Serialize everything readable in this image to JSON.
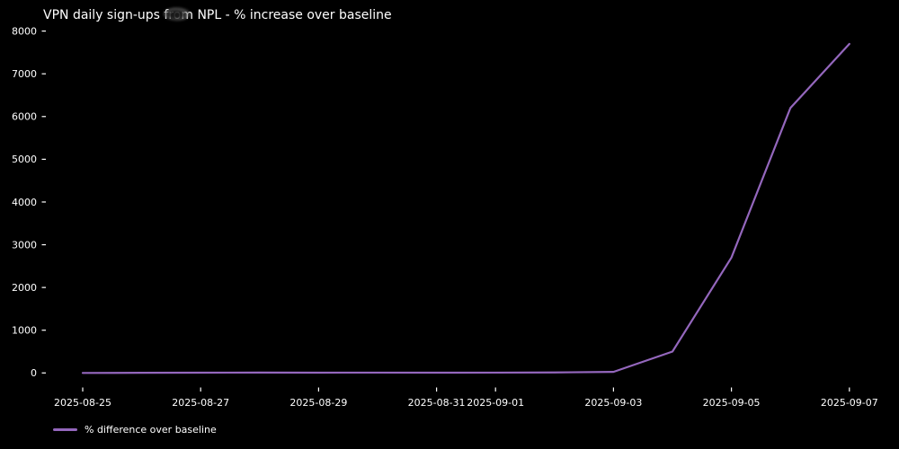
{
  "title": "VPN daily sign-ups from NPL - % increase over baseline",
  "legend": {
    "label": "% difference over baseline"
  },
  "colors": {
    "background": "#000000",
    "text": "#ffffff",
    "line": "#9467bd"
  },
  "chart_data": {
    "type": "line",
    "title": "VPN daily sign-ups from NPL - % increase over baseline",
    "x": [
      "2025-08-25",
      "2025-08-26",
      "2025-08-27",
      "2025-08-28",
      "2025-08-29",
      "2025-08-30",
      "2025-08-31",
      "2025-09-01",
      "2025-09-02",
      "2025-09-03",
      "2025-09-04",
      "2025-09-05",
      "2025-09-06",
      "2025-09-07"
    ],
    "series": [
      {
        "name": "% difference over baseline",
        "values": [
          0,
          3,
          6,
          9,
          7,
          8,
          6,
          8,
          12,
          25,
          500,
          2700,
          6200,
          7700
        ]
      }
    ],
    "xlabel": "",
    "ylabel": "",
    "ylim": [
      0,
      8000
    ],
    "y_ticks": [
      0,
      1000,
      2000,
      3000,
      4000,
      5000,
      6000,
      7000,
      8000
    ],
    "x_tick_labels": [
      "2025-08-25",
      "2025-08-27",
      "2025-08-29",
      "2025-08-31",
      "2025-09-01",
      "2025-09-03",
      "2025-09-05",
      "2025-09-07"
    ],
    "grid": false,
    "legend_position": "lower-left-outside",
    "background": "black"
  }
}
